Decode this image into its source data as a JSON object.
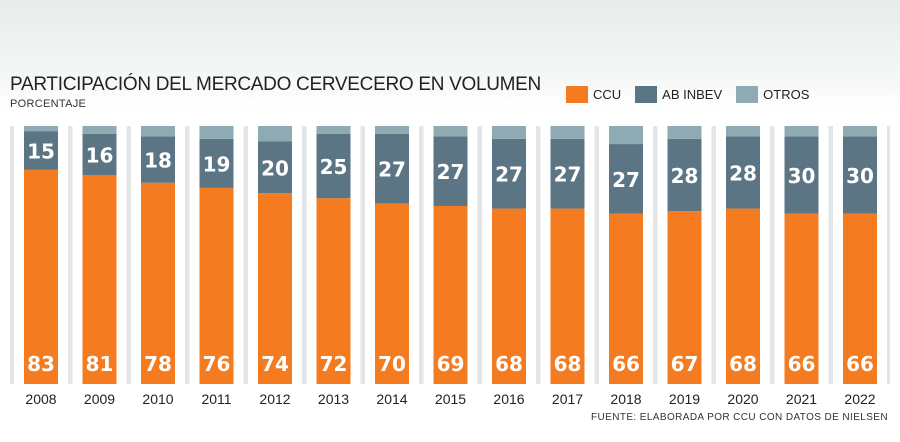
{
  "title": "PARTICIPACIÓN DEL MERCADO CERVECERO EN VOLUMEN",
  "subtitle": "PORCENTAJE",
  "legend": [
    {
      "label": "CCU",
      "color": "#f47b20"
    },
    {
      "label": "AB INBEV",
      "color": "#5b7585"
    },
    {
      "label": "OTROS",
      "color": "#8eaab3"
    }
  ],
  "source": "FUENTE: ELABORADA POR CCU CON DATOS DE NIELSEN",
  "chart_data": {
    "type": "bar",
    "stacked": true,
    "normalized": true,
    "categories": [
      "2008",
      "2009",
      "2010",
      "2011",
      "2012",
      "2013",
      "2014",
      "2015",
      "2016",
      "2017",
      "2018",
      "2019",
      "2020",
      "2021",
      "2022"
    ],
    "series": [
      {
        "name": "CCU",
        "color": "#f47b20",
        "values": [
          83,
          81,
          78,
          76,
          74,
          72,
          70,
          69,
          68,
          68,
          66,
          67,
          68,
          66,
          66
        ]
      },
      {
        "name": "AB INBEV",
        "color": "#5b7585",
        "values": [
          15,
          16,
          18,
          19,
          20,
          25,
          27,
          27,
          27,
          27,
          27,
          28,
          28,
          30,
          30
        ]
      },
      {
        "name": "OTROS",
        "color": "#8eaab3",
        "values": [
          2,
          3,
          4,
          5,
          6,
          3,
          3,
          4,
          5,
          5,
          7,
          5,
          4,
          4,
          4
        ]
      }
    ],
    "ylim": [
      0,
      100
    ],
    "xlabel": "",
    "ylabel": ""
  }
}
